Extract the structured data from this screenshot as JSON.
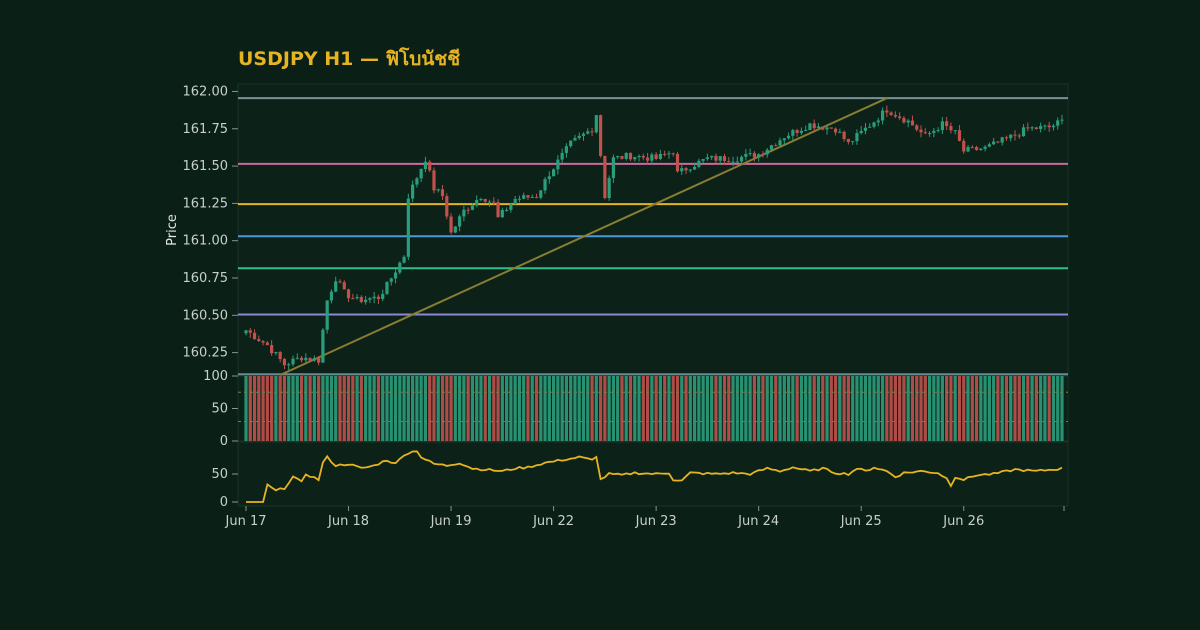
{
  "chart_data": {
    "type": "candlestick",
    "title": "USDJPY H1 — ฟิโบนัชชี",
    "colors": {
      "background": "#0a1f16",
      "panel": "#0c2218",
      "title": "#e6b422",
      "up": "#2a9d7c",
      "down": "#c0514d",
      "trendline": "#8a7d32",
      "rsi_line": "#e6b422"
    },
    "price_panel": {
      "ylabel": "Price",
      "ylim": [
        160.1,
        162.05
      ],
      "yticks": [
        "160.25",
        "160.50",
        "160.75",
        "161.00",
        "161.25",
        "161.50",
        "161.75",
        "162.00"
      ]
    },
    "volume_panel": {
      "ylim": [
        0,
        100
      ],
      "yticks": [
        "0",
        "50",
        "100"
      ]
    },
    "oscillator_panel": {
      "ylim": [
        0,
        100
      ],
      "yticks": [
        "0",
        "50"
      ]
    },
    "x_axis": {
      "tick_labels": [
        "Jun 17",
        "Jun 18",
        "Jun 19",
        "Jun 22",
        "Jun 23",
        "Jun 24",
        "Jun 25",
        "Jun 26"
      ],
      "bar_count": 192
    },
    "fib_levels": [
      {
        "price": 161.955,
        "color": "#7a8f99"
      },
      {
        "price": 161.515,
        "color": "#d0679e"
      },
      {
        "price": 161.245,
        "color": "#e6b422"
      },
      {
        "price": 161.03,
        "color": "#4e97d8"
      },
      {
        "price": 160.815,
        "color": "#2fbf8a"
      },
      {
        "price": 160.505,
        "color": "#8f86d6"
      },
      {
        "price": 160.105,
        "color": "#6a8a96"
      }
    ],
    "trendline": {
      "start": {
        "bar": 8,
        "price": 160.1
      },
      "end": {
        "bar": 150,
        "price": 161.955
      }
    },
    "price_path": {
      "anchors": [
        [
          0,
          160.4
        ],
        [
          5,
          160.3
        ],
        [
          9,
          160.17
        ],
        [
          13,
          160.22
        ],
        [
          17,
          160.2
        ],
        [
          19,
          160.6
        ],
        [
          21,
          160.75
        ],
        [
          23,
          160.65
        ],
        [
          26,
          160.6
        ],
        [
          31,
          160.62
        ],
        [
          33,
          160.7
        ],
        [
          37,
          160.9
        ],
        [
          38,
          161.3
        ],
        [
          42,
          161.55
        ],
        [
          44,
          161.35
        ],
        [
          46,
          161.3
        ],
        [
          48,
          161.05
        ],
        [
          51,
          161.2
        ],
        [
          55,
          161.3
        ],
        [
          58,
          161.25
        ],
        [
          59,
          161.15
        ],
        [
          63,
          161.28
        ],
        [
          68,
          161.3
        ],
        [
          71,
          161.45
        ],
        [
          76,
          161.65
        ],
        [
          81,
          161.75
        ],
        [
          82,
          161.85
        ],
        [
          84,
          161.3
        ],
        [
          86,
          161.55
        ],
        [
          90,
          161.57
        ],
        [
          96,
          161.55
        ],
        [
          100,
          161.6
        ],
        [
          101,
          161.45
        ],
        [
          104,
          161.5
        ],
        [
          108,
          161.55
        ],
        [
          114,
          161.55
        ],
        [
          120,
          161.58
        ],
        [
          126,
          161.7
        ],
        [
          132,
          161.78
        ],
        [
          138,
          161.75
        ],
        [
          141,
          161.65
        ],
        [
          147,
          161.8
        ],
        [
          150,
          161.88
        ],
        [
          155,
          161.8
        ],
        [
          159,
          161.7
        ],
        [
          163,
          161.78
        ],
        [
          166,
          161.72
        ],
        [
          168,
          161.6
        ],
        [
          173,
          161.62
        ],
        [
          178,
          161.68
        ],
        [
          183,
          161.75
        ],
        [
          188,
          161.76
        ],
        [
          191,
          161.8
        ]
      ]
    },
    "oscillator_path": {
      "anchors": [
        [
          0,
          0
        ],
        [
          4,
          0
        ],
        [
          5,
          30
        ],
        [
          7,
          20
        ],
        [
          9,
          25
        ],
        [
          11,
          45
        ],
        [
          13,
          35
        ],
        [
          14,
          50
        ],
        [
          17,
          40
        ],
        [
          18,
          70
        ],
        [
          19,
          80
        ],
        [
          21,
          65
        ],
        [
          24,
          68
        ],
        [
          27,
          60
        ],
        [
          30,
          65
        ],
        [
          33,
          75
        ],
        [
          35,
          68
        ],
        [
          37,
          85
        ],
        [
          40,
          92
        ],
        [
          41,
          80
        ],
        [
          44,
          68
        ],
        [
          47,
          65
        ],
        [
          50,
          70
        ],
        [
          53,
          60
        ],
        [
          56,
          58
        ],
        [
          60,
          55
        ],
        [
          63,
          60
        ],
        [
          66,
          62
        ],
        [
          70,
          70
        ],
        [
          74,
          75
        ],
        [
          78,
          80
        ],
        [
          81,
          75
        ],
        [
          82,
          82
        ],
        [
          83,
          40
        ],
        [
          85,
          50
        ],
        [
          88,
          48
        ],
        [
          91,
          52
        ],
        [
          96,
          50
        ],
        [
          99,
          52
        ],
        [
          100,
          40
        ],
        [
          102,
          38
        ],
        [
          104,
          52
        ],
        [
          110,
          50
        ],
        [
          114,
          52
        ],
        [
          118,
          50
        ],
        [
          122,
          60
        ],
        [
          125,
          55
        ],
        [
          128,
          62
        ],
        [
          132,
          55
        ],
        [
          135,
          60
        ],
        [
          138,
          52
        ],
        [
          141,
          50
        ],
        [
          143,
          60
        ],
        [
          145,
          55
        ],
        [
          147,
          62
        ],
        [
          150,
          55
        ],
        [
          152,
          45
        ],
        [
          154,
          52
        ],
        [
          158,
          55
        ],
        [
          162,
          52
        ],
        [
          164,
          42
        ],
        [
          165,
          30
        ],
        [
          166,
          45
        ],
        [
          168,
          40
        ],
        [
          171,
          48
        ],
        [
          175,
          50
        ],
        [
          180,
          58
        ],
        [
          185,
          55
        ],
        [
          191,
          60
        ]
      ]
    }
  }
}
